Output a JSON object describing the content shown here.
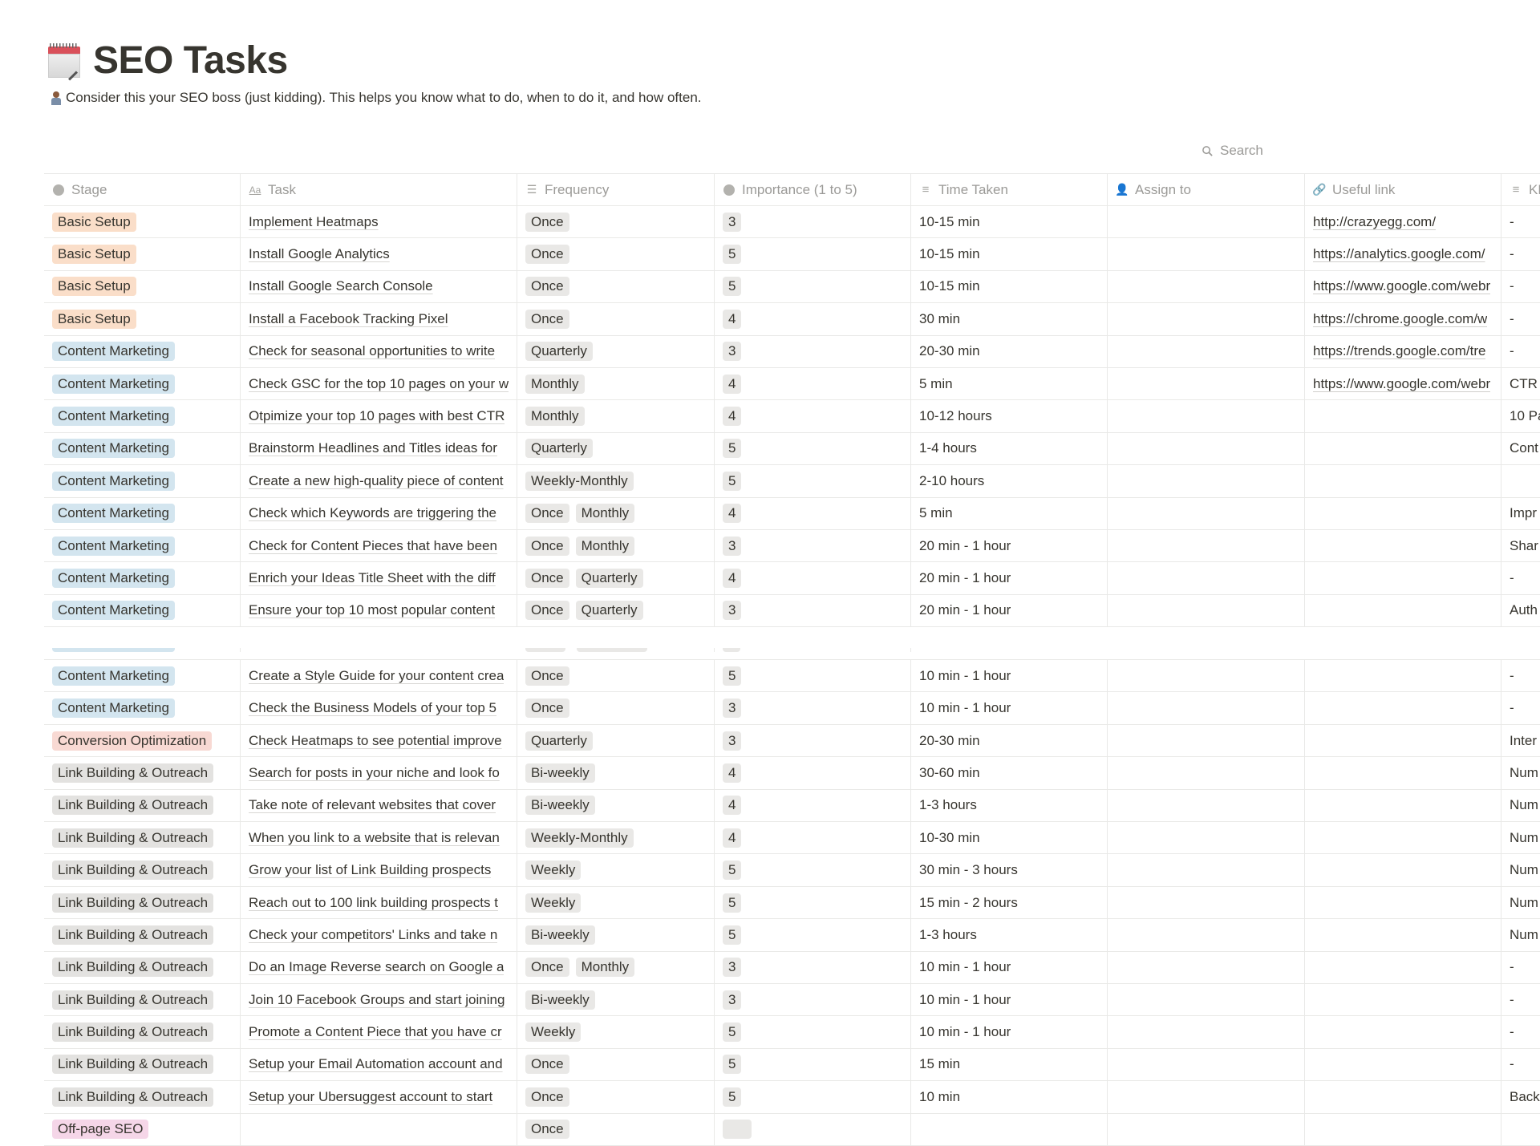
{
  "page": {
    "title": "SEO Tasks",
    "title_icon": "spiral-calendar-icon",
    "description": "Consider this your SEO boss (just kidding). This helps you  know what to do, when to do it, and how often.",
    "description_icon": "person-at-computer-icon"
  },
  "search": {
    "label": "Search",
    "icon": "search-icon"
  },
  "colors": {
    "Basic Setup": "#fadec9",
    "Content Marketing": "#d3e5ef",
    "Conversion Optimization": "#f8d9d3",
    "Link Building & Outreach": "#e3e2e0",
    "Off-page SEO": "#f5d6e8",
    "option_gray": "#e9e8e6",
    "text": "#37352f",
    "muted": "#9b9a97"
  },
  "columns": [
    {
      "label": "Stage",
      "icon": "select-icon"
    },
    {
      "label": "Task",
      "icon": "title-icon"
    },
    {
      "label": "Frequency",
      "icon": "multi-select-icon"
    },
    {
      "label": "Importance (1 to 5)",
      "icon": "select-icon"
    },
    {
      "label": "Time Taken",
      "icon": "text-icon"
    },
    {
      "label": "Assign to",
      "icon": "person-icon"
    },
    {
      "label": "Useful link",
      "icon": "url-icon"
    },
    {
      "label": "KPI",
      "icon": "text-icon"
    }
  ],
  "rows": [
    {
      "stage": "Basic Setup",
      "task": "Implement Heatmaps",
      "frequency": [
        "Once"
      ],
      "importance": "3",
      "time": "10-15 min",
      "assign": "",
      "link": "http://crazyegg.com/",
      "kpi": "-"
    },
    {
      "stage": "Basic Setup",
      "task": "Install Google Analytics",
      "frequency": [
        "Once"
      ],
      "importance": "5",
      "time": "10-15 min",
      "assign": "",
      "link": "https://analytics.google.com/",
      "kpi": "-"
    },
    {
      "stage": "Basic Setup",
      "task": "Install Google Search Console",
      "frequency": [
        "Once"
      ],
      "importance": "5",
      "time": "10-15 min",
      "assign": "",
      "link": "https://www.google.com/webr",
      "kpi": "-"
    },
    {
      "stage": "Basic Setup",
      "task": "Install a Facebook Tracking Pixel",
      "frequency": [
        "Once"
      ],
      "importance": "4",
      "time": "30 min",
      "assign": "",
      "link": "https://chrome.google.com/w",
      "kpi": "-"
    },
    {
      "stage": "Content Marketing",
      "task": "Check for seasonal opportunities to write",
      "frequency": [
        "Quarterly"
      ],
      "importance": "3",
      "time": "20-30 min",
      "assign": "",
      "link": "https://trends.google.com/tre",
      "kpi": "-"
    },
    {
      "stage": "Content Marketing",
      "task": "Check GSC for the top 10 pages on your w",
      "frequency": [
        "Monthly"
      ],
      "importance": "4",
      "time": "5 min",
      "assign": "",
      "link": "https://www.google.com/webr",
      "kpi": "CTR"
    },
    {
      "stage": "Content Marketing",
      "task": "Otpimize your top 10 pages with best CTR",
      "frequency": [
        "Monthly"
      ],
      "importance": "4",
      "time": "10-12 hours",
      "assign": "",
      "link": "",
      "kpi": "10 Pa"
    },
    {
      "stage": "Content Marketing",
      "task": "Brainstorm Headlines and Titles ideas for",
      "frequency": [
        "Quarterly"
      ],
      "importance": "5",
      "time": "1-4 hours",
      "assign": "",
      "link": "",
      "kpi": "Cont"
    },
    {
      "stage": "Content Marketing",
      "task": "Create a new high-quality piece of content",
      "frequency": [
        "Weekly-Monthly"
      ],
      "importance": "5",
      "time": "2-10 hours",
      "assign": "",
      "link": "",
      "kpi": ""
    },
    {
      "stage": "Content Marketing",
      "task": "Check which Keywords are triggering the",
      "frequency": [
        "Once",
        "Monthly"
      ],
      "importance": "4",
      "time": "5 min",
      "assign": "",
      "link": "",
      "kpi": "Impr"
    },
    {
      "stage": "Content Marketing",
      "task": "Check for Content Pieces that have been",
      "frequency": [
        "Once",
        "Monthly"
      ],
      "importance": "3",
      "time": "20 min - 1 hour",
      "assign": "",
      "link": "",
      "kpi": "Shar"
    },
    {
      "stage": "Content Marketing",
      "task": "Enrich your Ideas Title Sheet with the diff",
      "frequency": [
        "Once",
        "Quarterly"
      ],
      "importance": "4",
      "time": "20 min - 1 hour",
      "assign": "",
      "link": "",
      "kpi": "-"
    },
    {
      "stage": "Content Marketing",
      "task": "Ensure your top 10 most popular content",
      "frequency": [
        "Once",
        "Quarterly"
      ],
      "importance": "3",
      "time": "20 min - 1 hour",
      "assign": "",
      "link": "",
      "kpi": "Auth"
    }
  ],
  "rows_after_break": [
    {
      "stage": "Content Marketing",
      "task": "Create a Style Guide for your content crea",
      "frequency": [
        "Once"
      ],
      "importance": "5",
      "time": "10 min - 1 hour",
      "assign": "",
      "link": "",
      "kpi": "-"
    },
    {
      "stage": "Content Marketing",
      "task": "Check the Business Models of your top 5",
      "frequency": [
        "Once"
      ],
      "importance": "3",
      "time": "10 min - 1 hour",
      "assign": "",
      "link": "",
      "kpi": "-"
    },
    {
      "stage": "Conversion Optimization",
      "task": "Check Heatmaps to see potential improve",
      "frequency": [
        "Quarterly"
      ],
      "importance": "3",
      "time": "20-30 min",
      "assign": "",
      "link": "",
      "kpi": "Inter"
    },
    {
      "stage": "Link Building & Outreach",
      "task": "Search for posts in your niche and look fo",
      "frequency": [
        "Bi-weekly"
      ],
      "importance": "4",
      "time": "30-60 min",
      "assign": "",
      "link": "",
      "kpi": "Num"
    },
    {
      "stage": "Link Building & Outreach",
      "task": "Take note of relevant websites that cover",
      "frequency": [
        "Bi-weekly"
      ],
      "importance": "4",
      "time": "1-3 hours",
      "assign": "",
      "link": "",
      "kpi": "Num"
    },
    {
      "stage": "Link Building & Outreach",
      "task": "When you link to a website that is relevan",
      "frequency": [
        "Weekly-Monthly"
      ],
      "importance": "4",
      "time": "10-30 min",
      "assign": "",
      "link": "",
      "kpi": "Num"
    },
    {
      "stage": "Link Building & Outreach",
      "task": "Grow your list of Link Building prospects",
      "frequency": [
        "Weekly"
      ],
      "importance": "5",
      "time": "30 min - 3 hours",
      "assign": "",
      "link": "",
      "kpi": "Num"
    },
    {
      "stage": "Link Building & Outreach",
      "task": "Reach out to 100 link building prospects t",
      "frequency": [
        "Weekly"
      ],
      "importance": "5",
      "time": "15 min - 2 hours",
      "assign": "",
      "link": "",
      "kpi": "Num"
    },
    {
      "stage": "Link Building & Outreach",
      "task": "Check your competitors' Links and take n",
      "frequency": [
        "Bi-weekly"
      ],
      "importance": "5",
      "time": "1-3 hours",
      "assign": "",
      "link": "",
      "kpi": "Num"
    },
    {
      "stage": "Link Building & Outreach",
      "task": "Do an Image Reverse search on Google a",
      "frequency": [
        "Once",
        "Monthly"
      ],
      "importance": "3",
      "time": "10 min - 1 hour",
      "assign": "",
      "link": "",
      "kpi": "-"
    },
    {
      "stage": "Link Building & Outreach",
      "task": "Join 10 Facebook Groups and start joining",
      "frequency": [
        "Bi-weekly"
      ],
      "importance": "3",
      "time": "10 min - 1 hour",
      "assign": "",
      "link": "",
      "kpi": "-"
    },
    {
      "stage": "Link Building & Outreach",
      "task": "Promote a Content Piece that you have cr",
      "frequency": [
        "Weekly"
      ],
      "importance": "5",
      "time": "10 min - 1 hour",
      "assign": "",
      "link": "",
      "kpi": "-"
    },
    {
      "stage": "Link Building & Outreach",
      "task": "Setup your Email Automation account and",
      "frequency": [
        "Once"
      ],
      "importance": "5",
      "time": "15 min",
      "assign": "",
      "link": "",
      "kpi": "-"
    },
    {
      "stage": "Link Building & Outreach",
      "task": "Setup your Ubersuggest account to start",
      "frequency": [
        "Once"
      ],
      "importance": "5",
      "time": "10 min",
      "assign": "",
      "link": "",
      "kpi": "Back"
    },
    {
      "stage": "Off-page SEO",
      "task": "",
      "frequency": [
        "Once"
      ],
      "importance": "",
      "time": "",
      "assign": "",
      "link": "",
      "kpi": ""
    }
  ]
}
